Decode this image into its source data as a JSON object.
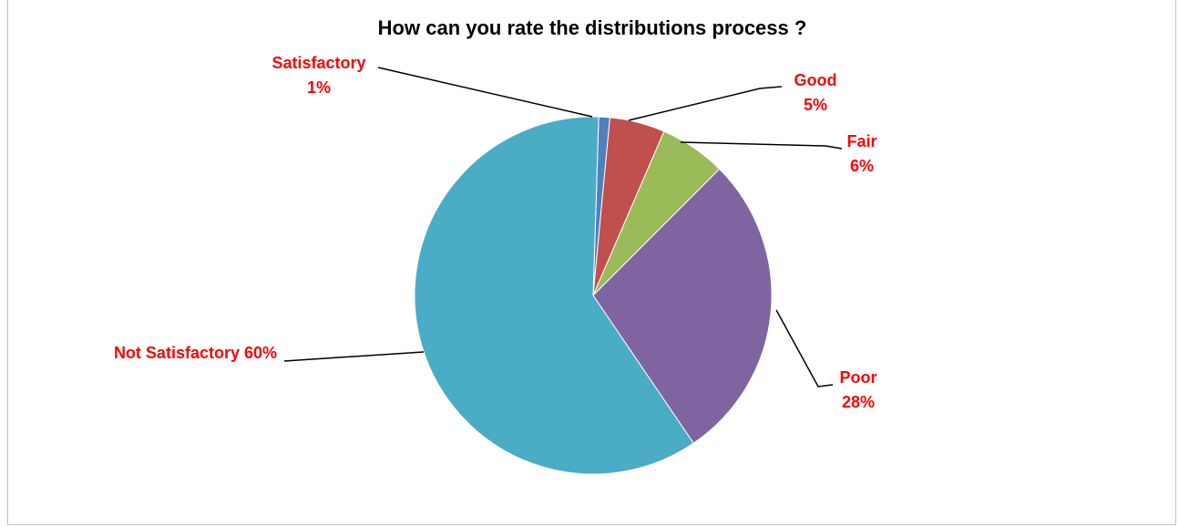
{
  "chart_data": {
    "type": "pie",
    "title": "How can you rate the distributions process ?",
    "slices": [
      {
        "name": "Satisfactory",
        "value": 1,
        "label": "1%",
        "color": "#4f81bd"
      },
      {
        "name": "Good",
        "value": 5,
        "label": "5%",
        "color": "#c0504d"
      },
      {
        "name": "Fair",
        "value": 6,
        "label": "6%",
        "color": "#9bbb59"
      },
      {
        "name": "Poor",
        "value": 28,
        "label": "28%",
        "color": "#8064a2"
      },
      {
        "name": "Not Satisfactory",
        "value": 60,
        "label": "60%",
        "color": "#4bacc6"
      }
    ],
    "label_color": "#ff0000",
    "legend": "none"
  }
}
